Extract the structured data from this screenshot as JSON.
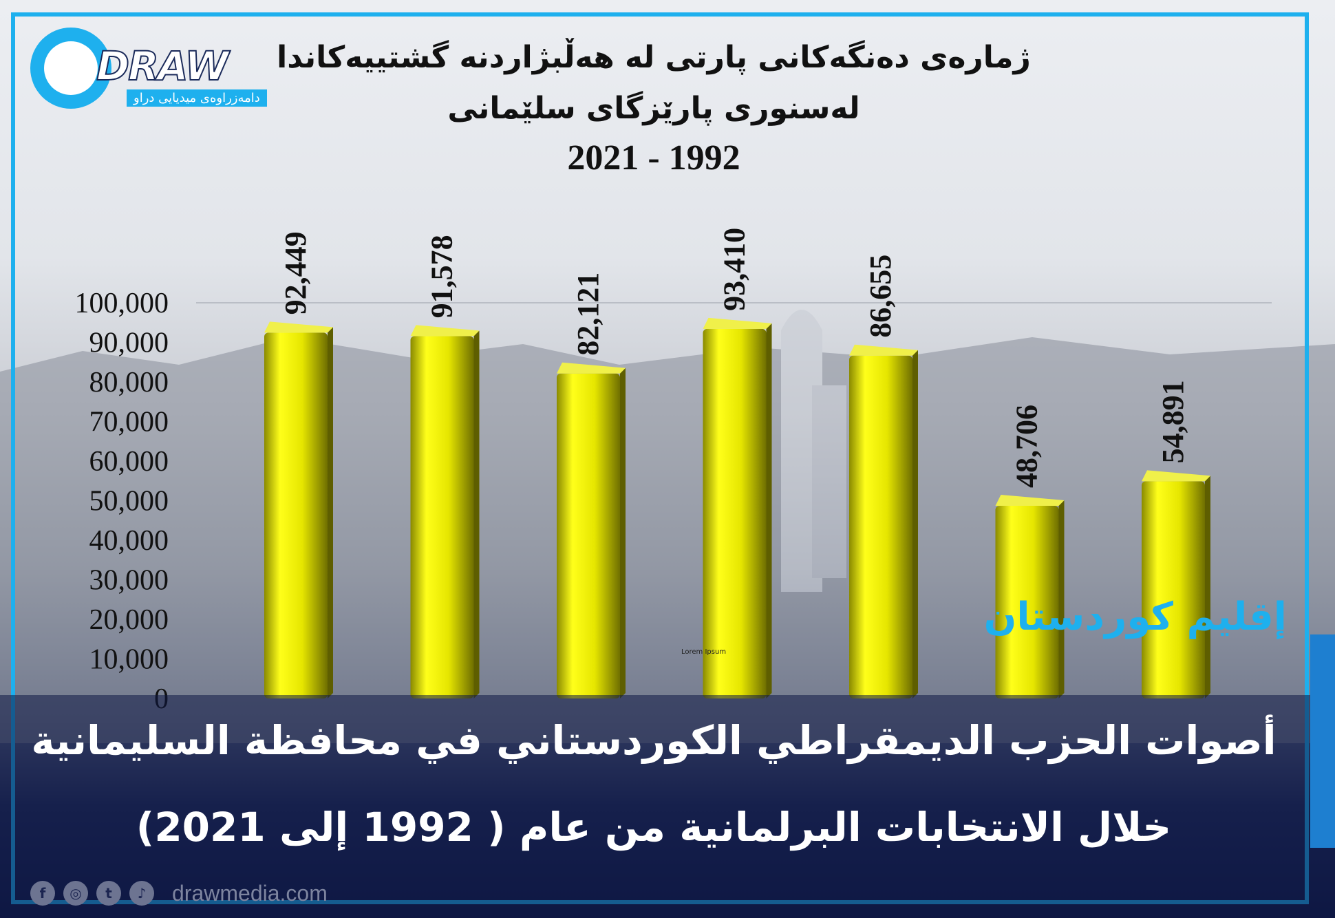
{
  "logo": {
    "wordmark": "DRAW",
    "tagline": "دامەزراوەی میدیایی دراو"
  },
  "title_line1": "ژمارەی دەنگەکانی پارتی لە هەڵبژاردنە گشتییەکاندا",
  "title_line2": "لەسنوری پارێزگای سلێمانی",
  "title_line3": "2021 - 1992",
  "region_label": "إقليم كوردستان",
  "caption_line1": "أصوات الحزب الديمقراطي الكوردستاني في محافظة السليمانية",
  "caption_line2": "خلال الانتخابات البرلمانية من عام ( 1992 إلى 2021)",
  "placeholder_text": "Lorem Ipsum",
  "footer": {
    "website": "drawmedia.com",
    "icons": [
      "facebook-icon",
      "instagram-icon",
      "twitter-icon",
      "tiktok-icon"
    ]
  },
  "colors": {
    "bar": "#e6e600",
    "accent": "#1eb0ee",
    "band": "#0e1844"
  },
  "chart_data": {
    "type": "bar",
    "title": "",
    "xlabel": "",
    "ylabel": "",
    "categories": [
      "",
      "",
      "",
      "",
      "",
      "",
      ""
    ],
    "values": [
      92449,
      91578,
      82121,
      93410,
      86655,
      48706,
      54891
    ],
    "value_labels": [
      "92,449",
      "91,578",
      "82,121",
      "93,410",
      "86,655",
      "48,706",
      "54,891"
    ],
    "y_ticks": [
      "0",
      "10,000",
      "20,000",
      "30,000",
      "40,000",
      "50,000",
      "60,000",
      "70,000",
      "80,000",
      "90,000",
      "100,000"
    ],
    "ylim": [
      0,
      100000
    ],
    "grid": true,
    "legend": "none"
  }
}
